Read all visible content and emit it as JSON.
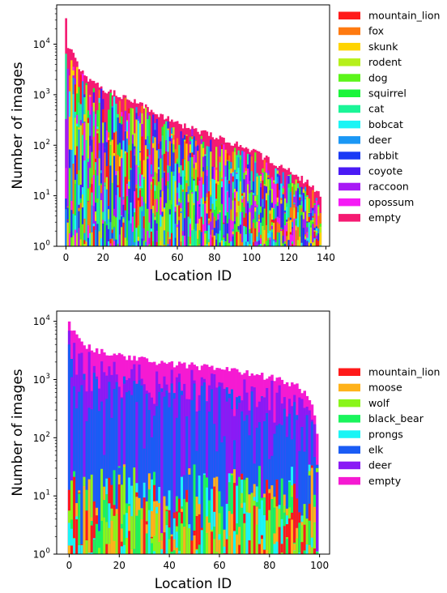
{
  "chart_data": [
    {
      "type": "bar",
      "stacked": "overlaid",
      "xlabel": "Location ID",
      "ylabel": "Number of images",
      "yscale": "log",
      "ylim": [
        1,
        60000
      ],
      "xlim": [
        -5,
        142
      ],
      "xticks": [
        0,
        20,
        40,
        60,
        80,
        100,
        120,
        140
      ],
      "yticks": [
        {
          "v": 1,
          "label": "10"
        },
        {
          "v": 10,
          "label": "10"
        },
        {
          "v": 100,
          "label": "10"
        },
        {
          "v": 1000,
          "label": "10"
        },
        {
          "v": 10000,
          "label": "10"
        }
      ],
      "ytick_exponents": [
        "0",
        "1",
        "2",
        "3",
        "4"
      ],
      "legend_position": "right",
      "n_locations": 138,
      "series": [
        {
          "name": "mountain_lion",
          "color": "#ff1a1a"
        },
        {
          "name": "fox",
          "color": "#ff7a10"
        },
        {
          "name": "skunk",
          "color": "#ffd400"
        },
        {
          "name": "rodent",
          "color": "#b6f01a"
        },
        {
          "name": "dog",
          "color": "#5cf51a"
        },
        {
          "name": "squirrel",
          "color": "#1af53a"
        },
        {
          "name": "cat",
          "color": "#1af597"
        },
        {
          "name": "bobcat",
          "color": "#1af5f5"
        },
        {
          "name": "deer",
          "color": "#1a97f5"
        },
        {
          "name": "rabbit",
          "color": "#1a3af5"
        },
        {
          "name": "coyote",
          "color": "#4a1af5"
        },
        {
          "name": "raccoon",
          "color": "#a81af5"
        },
        {
          "name": "opossum",
          "color": "#f51af5"
        },
        {
          "name": "empty",
          "color": "#f51a72"
        }
      ],
      "empty_profile": [
        [
          0,
          35000
        ],
        [
          1,
          8000
        ],
        [
          3,
          7000
        ],
        [
          5,
          5500
        ],
        [
          8,
          3000
        ],
        [
          12,
          2000
        ],
        [
          20,
          1300
        ],
        [
          30,
          950
        ],
        [
          40,
          650
        ],
        [
          50,
          420
        ],
        [
          60,
          270
        ],
        [
          70,
          200
        ],
        [
          80,
          150
        ],
        [
          90,
          110
        ],
        [
          100,
          80
        ],
        [
          110,
          50
        ],
        [
          120,
          32
        ],
        [
          127,
          22
        ],
        [
          133,
          15
        ],
        [
          137,
          10
        ]
      ]
    },
    {
      "type": "bar",
      "stacked": "overlaid",
      "xlabel": "Location ID",
      "ylabel": "Number of images",
      "yscale": "log",
      "ylim": [
        1,
        15000
      ],
      "xlim": [
        -5,
        104
      ],
      "xticks": [
        0,
        20,
        40,
        60,
        80,
        100
      ],
      "yticks": [
        {
          "v": 1,
          "label": "10"
        },
        {
          "v": 10,
          "label": "10"
        },
        {
          "v": 100,
          "label": "10"
        },
        {
          "v": 1000,
          "label": "10"
        },
        {
          "v": 10000,
          "label": "10"
        }
      ],
      "ytick_exponents": [
        "0",
        "1",
        "2",
        "3",
        "4"
      ],
      "legend_position": "right",
      "n_locations": 100,
      "series": [
        {
          "name": "mountain_lion",
          "color": "#ff1a1a"
        },
        {
          "name": "moose",
          "color": "#ffb21a"
        },
        {
          "name": "wolf",
          "color": "#8af51a"
        },
        {
          "name": "black_bear",
          "color": "#1af55c"
        },
        {
          "name": "prongs",
          "color": "#1af5f5"
        },
        {
          "name": "elk",
          "color": "#1a5cf5"
        },
        {
          "name": "deer",
          "color": "#8a1af5"
        },
        {
          "name": "empty",
          "color": "#f51ad2"
        }
      ],
      "empty_profile": [
        [
          0,
          10500
        ],
        [
          1,
          7000
        ],
        [
          3,
          5500
        ],
        [
          5,
          4500
        ],
        [
          10,
          3200
        ],
        [
          15,
          2800
        ],
        [
          20,
          2500
        ],
        [
          30,
          2200
        ],
        [
          40,
          1900
        ],
        [
          50,
          1700
        ],
        [
          60,
          1500
        ],
        [
          70,
          1300
        ],
        [
          80,
          1100
        ],
        [
          90,
          850
        ],
        [
          95,
          550
        ],
        [
          98,
          250
        ],
        [
          99,
          120
        ]
      ]
    }
  ]
}
